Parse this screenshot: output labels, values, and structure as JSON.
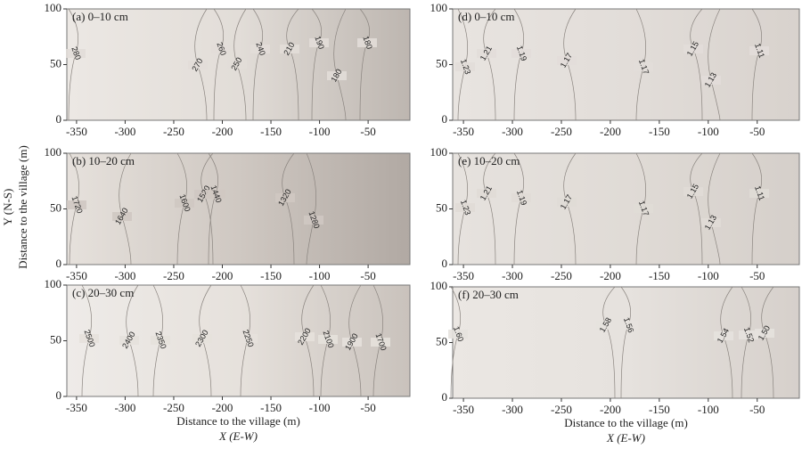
{
  "chart_data": [
    {
      "type": "contour",
      "title": "(a) 0–10 cm",
      "xlim": [
        -360,
        -7
      ],
      "ylim": [
        0,
        100
      ],
      "xticks": [
        -350,
        -300,
        -250,
        -200,
        -150,
        -100,
        -50
      ],
      "yticks": [
        0,
        50,
        100
      ],
      "levels": [
        280,
        270,
        260,
        250,
        240,
        210,
        190,
        180,
        180
      ]
    },
    {
      "type": "contour",
      "title": "(b) 10–20 cm",
      "xlim": [
        -360,
        -7
      ],
      "ylim": [
        0,
        100
      ],
      "xticks": [
        -350,
        -300,
        -250,
        -200,
        -150,
        -100,
        -50
      ],
      "yticks": [
        0,
        50,
        100
      ],
      "levels": [
        1720,
        1640,
        1600,
        1520,
        1440,
        1320,
        1280
      ],
      "ylabel": "Distance to the village (m)",
      "ysub": "Y (N-S)"
    },
    {
      "type": "contour",
      "title": "(c) 20–30 cm",
      "xlim": [
        -360,
        -7
      ],
      "ylim": [
        0,
        100
      ],
      "xticks": [
        -350,
        -300,
        -250,
        -200,
        -150,
        -100,
        -50
      ],
      "yticks": [
        0,
        50,
        100
      ],
      "levels": [
        2500,
        2400,
        2350,
        2300,
        2250,
        2200,
        2100,
        1900,
        1700
      ],
      "xlabel": "Distance to the village (m)",
      "xsub": "X (E-W)"
    },
    {
      "type": "contour",
      "title": "(d) 0–10 cm",
      "xlim": [
        -361,
        -7
      ],
      "ylim": [
        0,
        100
      ],
      "xticks": [
        -350,
        -300,
        -250,
        -200,
        -150,
        -100,
        -50
      ],
      "yticks": [
        0,
        50,
        100
      ],
      "levels": [
        1.23,
        1.21,
        1.19,
        1.17,
        1.17,
        1.15,
        1.11,
        1.13
      ]
    },
    {
      "type": "contour",
      "title": "(e) 10–20 cm",
      "xlim": [
        -361,
        -7
      ],
      "ylim": [
        0,
        100
      ],
      "xticks": [
        -350,
        -300,
        -250,
        -200,
        -150,
        -100,
        -50
      ],
      "yticks": [
        0,
        50,
        100
      ],
      "levels": [
        1.23,
        1.21,
        1.19,
        1.17,
        1.17,
        1.15,
        1.11,
        1.13
      ]
    },
    {
      "type": "contour",
      "title": "(f) 20–30 cm",
      "xlim": [
        -361,
        -7
      ],
      "ylim": [
        0,
        100
      ],
      "xticks": [
        -350,
        -300,
        -250,
        -200,
        -150,
        -100,
        -50
      ],
      "yticks": [
        0,
        50,
        100
      ],
      "levels": [
        {
          "value": 1.6,
          "label": "1.60"
        },
        1.58,
        1.56,
        1.54,
        1.52,
        {
          "value": 1.5,
          "label": "1.50"
        }
      ],
      "xlabel": "Distance to the village (m)",
      "xsub": "X (E-W)"
    }
  ]
}
